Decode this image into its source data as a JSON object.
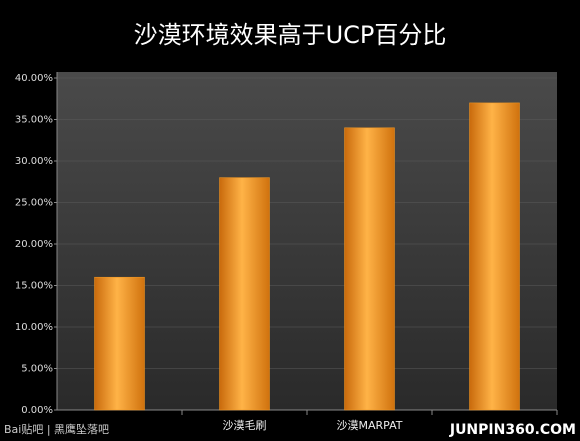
{
  "chart_data": {
    "type": "bar",
    "title": "沙漠环境效果高于UCP百分比",
    "categories": [
      null,
      "沙漠毛刷",
      "沙漠MARPAT",
      null
    ],
    "values": [
      16,
      28,
      34,
      37
    ],
    "color": "#f59a23",
    "ylim": [
      0,
      40
    ],
    "yticks": [
      {
        "value": 0,
        "label": "0.00%"
      },
      {
        "value": 5,
        "label": "5.00%"
      },
      {
        "value": 10,
        "label": "10.00%"
      },
      {
        "value": 15,
        "label": "15.00%"
      },
      {
        "value": 20,
        "label": "20.00%"
      },
      {
        "value": 25,
        "label": "25.00%"
      },
      {
        "value": 30,
        "label": "30.00%"
      },
      {
        "value": 35,
        "label": "35.00%"
      },
      {
        "value": 40,
        "label": "40.00%"
      }
    ],
    "grid": true,
    "annotations": [
      "Bai贴吧 | 黑鹰坠落吧",
      "JUNPIN360.COM"
    ]
  }
}
